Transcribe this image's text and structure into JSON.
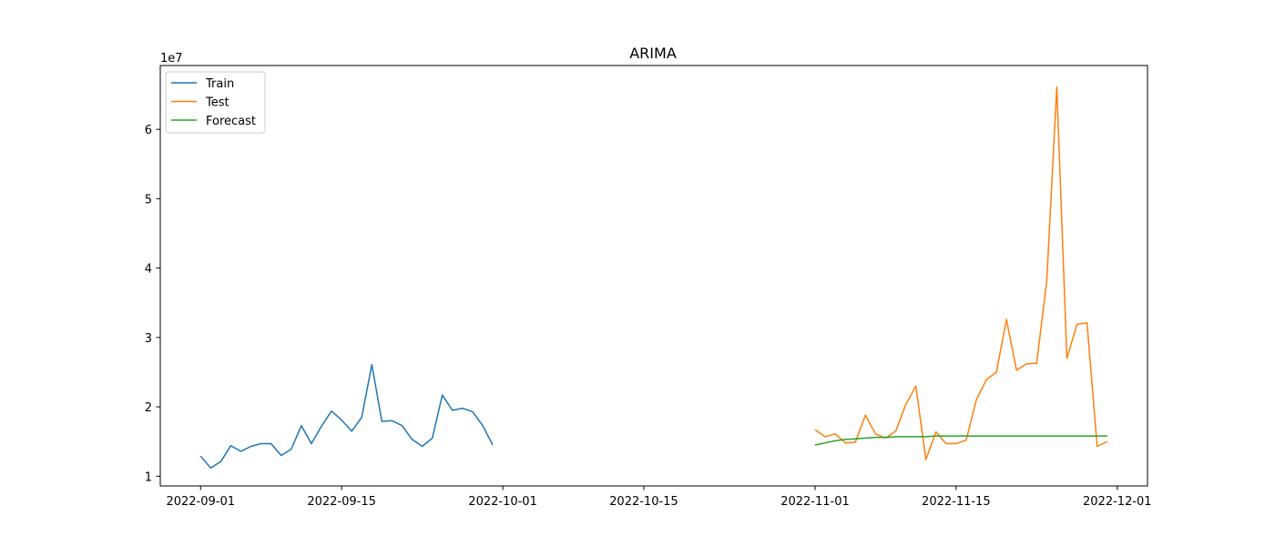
{
  "chart_data": {
    "type": "line",
    "title": "ARIMA",
    "xlabel": "",
    "ylabel": "",
    "y_scale_label": "1e7",
    "y_multiplier": 10000000,
    "xlim": [
      "2022-08-28",
      "2022-12-04"
    ],
    "ylim": [
      0.86,
      6.92
    ],
    "x_ticks": [
      "2022-09-01",
      "2022-09-15",
      "2022-10-01",
      "2022-10-15",
      "2022-11-01",
      "2022-11-15",
      "2022-12-01"
    ],
    "y_ticks": [
      1,
      2,
      3,
      4,
      5,
      6
    ],
    "grid": false,
    "legend_position": "top-left",
    "series": [
      {
        "name": "Train",
        "color": "#1f77b4",
        "x": [
          "2022-09-01",
          "2022-09-02",
          "2022-09-03",
          "2022-09-04",
          "2022-09-05",
          "2022-09-06",
          "2022-09-07",
          "2022-09-08",
          "2022-09-09",
          "2022-09-10",
          "2022-09-11",
          "2022-09-12",
          "2022-09-13",
          "2022-09-14",
          "2022-09-15",
          "2022-09-16",
          "2022-09-17",
          "2022-09-18",
          "2022-09-19",
          "2022-09-20",
          "2022-09-21",
          "2022-09-22",
          "2022-09-23",
          "2022-09-24",
          "2022-09-25",
          "2022-09-26",
          "2022-09-27",
          "2022-09-28",
          "2022-09-29",
          "2022-09-30"
        ],
        "y": [
          1.29,
          1.12,
          1.21,
          1.44,
          1.36,
          1.43,
          1.47,
          1.47,
          1.3,
          1.39,
          1.73,
          1.47,
          1.72,
          1.94,
          1.81,
          1.65,
          1.85,
          2.61,
          1.79,
          1.8,
          1.73,
          1.53,
          1.43,
          1.55,
          2.17,
          1.95,
          1.98,
          1.93,
          1.73,
          1.45
        ]
      },
      {
        "name": "Test",
        "color": "#ff7f0e",
        "x": [
          "2022-11-01",
          "2022-11-02",
          "2022-11-03",
          "2022-11-04",
          "2022-11-05",
          "2022-11-06",
          "2022-11-07",
          "2022-11-08",
          "2022-11-09",
          "2022-11-10",
          "2022-11-11",
          "2022-11-12",
          "2022-11-13",
          "2022-11-14",
          "2022-11-15",
          "2022-11-16",
          "2022-11-17",
          "2022-11-18",
          "2022-11-19",
          "2022-11-20",
          "2022-11-21",
          "2022-11-22",
          "2022-11-23",
          "2022-11-24",
          "2022-11-25",
          "2022-11-26",
          "2022-11-27",
          "2022-11-28",
          "2022-11-29",
          "2022-11-30"
        ],
        "y": [
          1.67,
          1.57,
          1.61,
          1.48,
          1.49,
          1.88,
          1.61,
          1.55,
          1.65,
          2.03,
          2.3,
          1.24,
          1.64,
          1.47,
          1.47,
          1.52,
          2.1,
          2.39,
          2.5,
          3.26,
          2.53,
          2.62,
          2.63,
          3.82,
          6.61,
          2.7,
          3.19,
          3.21,
          1.43,
          1.5
        ]
      },
      {
        "name": "Forecast",
        "color": "#2ca02c",
        "x": [
          "2022-11-01",
          "2022-11-02",
          "2022-11-03",
          "2022-11-04",
          "2022-11-05",
          "2022-11-06",
          "2022-11-07",
          "2022-11-08",
          "2022-11-09",
          "2022-11-10",
          "2022-11-11",
          "2022-11-12",
          "2022-11-13",
          "2022-11-14",
          "2022-11-15",
          "2022-11-16",
          "2022-11-17",
          "2022-11-18",
          "2022-11-19",
          "2022-11-20",
          "2022-11-21",
          "2022-11-22",
          "2022-11-23",
          "2022-11-24",
          "2022-11-25",
          "2022-11-26",
          "2022-11-27",
          "2022-11-28",
          "2022-11-29",
          "2022-11-30"
        ],
        "y": [
          1.45,
          1.48,
          1.51,
          1.53,
          1.54,
          1.55,
          1.56,
          1.56,
          1.57,
          1.57,
          1.57,
          1.57,
          1.58,
          1.58,
          1.58,
          1.58,
          1.58,
          1.58,
          1.58,
          1.58,
          1.58,
          1.58,
          1.58,
          1.58,
          1.58,
          1.58,
          1.58,
          1.58,
          1.58,
          1.58
        ]
      }
    ]
  }
}
